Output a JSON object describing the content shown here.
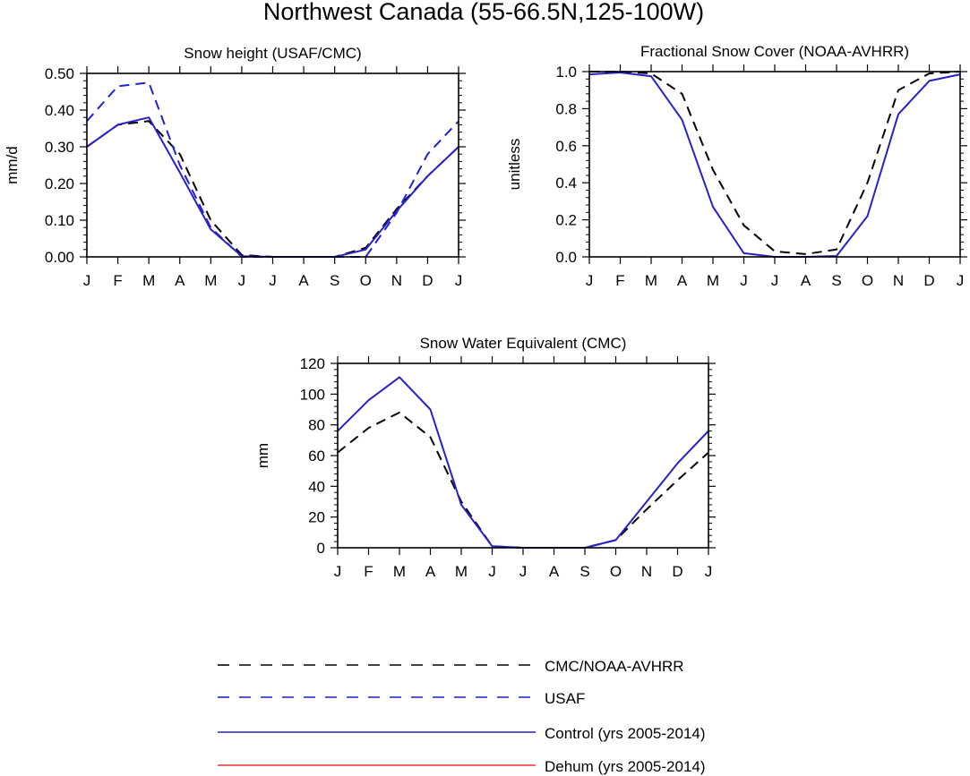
{
  "figure": {
    "title": "Northwest Canada (55-66.5N,125-100W)"
  },
  "chart_data": [
    {
      "id": "snow_height",
      "type": "line",
      "title": "Snow height (USAF/CMC)",
      "xlabel": "",
      "ylabel": "mm/d",
      "categories": [
        "J",
        "F",
        "M",
        "A",
        "M",
        "J",
        "J",
        "A",
        "S",
        "O",
        "N",
        "D",
        "J"
      ],
      "ylim": [
        0,
        0.5
      ],
      "yticks": [
        0,
        0.1,
        0.2,
        0.3,
        0.4,
        0.5
      ],
      "yticklabels": [
        "0.00",
        "0.10",
        "0.20",
        "0.30",
        "0.40",
        "0.50"
      ],
      "series": [
        {
          "name": "CMC/NOAA-AVHRR",
          "style": "dashed",
          "color": "#000000",
          "values": [
            0.3,
            0.36,
            0.37,
            0.28,
            0.1,
            0.005,
            0.0,
            0.0,
            0.0,
            0.025,
            0.13,
            0.22,
            0.3
          ]
        },
        {
          "name": "USAF",
          "style": "dashed",
          "color": "#1f1fd6",
          "values": [
            0.37,
            0.465,
            0.475,
            0.25,
            0.08,
            0.0,
            0.0,
            0.0,
            0.0,
            0.0,
            0.12,
            0.28,
            0.37
          ]
        },
        {
          "name": "Control (yrs 2005-2014)",
          "style": "solid",
          "color": "#2a20c8",
          "values": [
            0.3,
            0.36,
            0.38,
            0.23,
            0.075,
            0.002,
            0.0,
            0.0,
            0.0,
            0.02,
            0.125,
            0.22,
            0.3
          ]
        }
      ]
    },
    {
      "id": "snow_cover",
      "type": "line",
      "title": "Fractional Snow Cover (NOAA-AVHRR)",
      "xlabel": "",
      "ylabel": "unitless",
      "categories": [
        "J",
        "F",
        "M",
        "A",
        "M",
        "J",
        "J",
        "A",
        "S",
        "O",
        "N",
        "D",
        "J"
      ],
      "ylim": [
        0,
        1.0
      ],
      "yticks": [
        0,
        0.2,
        0.4,
        0.6,
        0.8,
        1.0
      ],
      "yticklabels": [
        "0.0",
        "0.2",
        "0.4",
        "0.6",
        "0.8",
        "1.0"
      ],
      "series": [
        {
          "name": "CMC/NOAA-AVHRR",
          "style": "dashed",
          "color": "#000000",
          "values": [
            1.0,
            1.0,
            0.99,
            0.88,
            0.47,
            0.17,
            0.03,
            0.015,
            0.04,
            0.4,
            0.9,
            0.99,
            1.0
          ]
        },
        {
          "name": "Control (yrs 2005-2014)",
          "style": "solid",
          "color": "#2a20c8",
          "values": [
            0.985,
            0.995,
            0.975,
            0.74,
            0.27,
            0.02,
            0.0,
            0.0,
            0.005,
            0.22,
            0.77,
            0.95,
            0.985
          ]
        }
      ]
    },
    {
      "id": "swe",
      "type": "line",
      "title": "Snow Water Equivalent (CMC)",
      "xlabel": "",
      "ylabel": "mm",
      "categories": [
        "J",
        "F",
        "M",
        "A",
        "M",
        "J",
        "J",
        "A",
        "S",
        "O",
        "N",
        "D",
        "J"
      ],
      "ylim": [
        0,
        120
      ],
      "yticks": [
        0,
        20,
        40,
        60,
        80,
        100,
        120
      ],
      "yticklabels": [
        "0",
        "20",
        "40",
        "60",
        "80",
        "100",
        "120"
      ],
      "series": [
        {
          "name": "CMC/NOAA-AVHRR",
          "style": "dashed",
          "color": "#000000",
          "values": [
            62,
            78,
            88,
            72,
            30,
            1,
            0,
            0,
            0,
            5,
            25,
            44,
            62
          ]
        },
        {
          "name": "Control (yrs 2005-2014)",
          "style": "solid",
          "color": "#2a20c8",
          "values": [
            76,
            96,
            111,
            90,
            28,
            1,
            0,
            0,
            0,
            5,
            30,
            55,
            76
          ]
        }
      ]
    }
  ],
  "legend": {
    "position": "bottom",
    "entries": [
      {
        "label": "CMC/NOAA-AVHRR",
        "style": "dashed",
        "color": "#000000"
      },
      {
        "label": "USAF",
        "style": "dashed",
        "color": "#1f1fd6"
      },
      {
        "label": "Control (yrs 2005-2014)",
        "style": "solid",
        "color": "#2a20c8"
      },
      {
        "label": "Dehum (yrs 2005-2014)",
        "style": "solid",
        "color": "#e8352e"
      }
    ]
  }
}
